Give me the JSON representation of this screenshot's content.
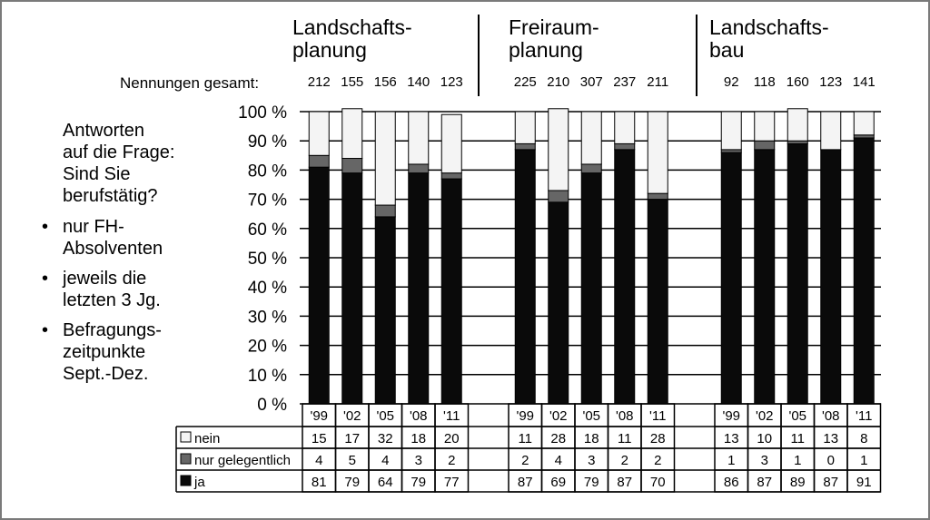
{
  "chart_data": {
    "type": "bar",
    "stacked": true,
    "groups": [
      {
        "title": "Landschafts-\nplanung",
        "years": [
          "'99",
          "'02",
          "'05",
          "'08",
          "'11"
        ],
        "nennungen": [
          212,
          155,
          156,
          140,
          123
        ],
        "nein": [
          15,
          17,
          32,
          18,
          20
        ],
        "nur_gelegentlich": [
          4,
          5,
          4,
          3,
          2
        ],
        "ja": [
          81,
          79,
          64,
          79,
          77
        ]
      },
      {
        "title": "Freiraum-\nplanung",
        "years": [
          "'99",
          "'02",
          "'05",
          "'08",
          "'11"
        ],
        "nennungen": [
          225,
          210,
          307,
          237,
          211
        ],
        "nein": [
          11,
          28,
          18,
          11,
          28
        ],
        "nur_gelegentlich": [
          2,
          4,
          3,
          2,
          2
        ],
        "ja": [
          87,
          69,
          79,
          87,
          70
        ]
      },
      {
        "title": "Landschafts-\nbau",
        "years": [
          "'99",
          "'02",
          "'05",
          "'08",
          "'11"
        ],
        "nennungen": [
          92,
          118,
          160,
          123,
          141
        ],
        "nein": [
          13,
          10,
          11,
          13,
          8
        ],
        "nur_gelegentlich": [
          1,
          3,
          1,
          0,
          1
        ],
        "ja": [
          86,
          87,
          89,
          87,
          91
        ]
      }
    ],
    "series": [
      {
        "name": "nein",
        "color": "#f4f4f4"
      },
      {
        "name": "nur gelegentlich",
        "color": "#666666"
      },
      {
        "name": "ja",
        "color": "#0a0a0a"
      }
    ],
    "yticks": [
      "0 %",
      "10 %",
      "20 %",
      "30 %",
      "40 %",
      "50 %",
      "60 %",
      "70 %",
      "80 %",
      "90 %",
      "100 %"
    ],
    "ylim": [
      0,
      100
    ],
    "nennungen_label": "Nennungen gesamt:",
    "grid": true,
    "legend": "table-below"
  },
  "left_panel": {
    "question": "Antworten\nauf die Frage:\nSind Sie\nberufstätig?",
    "bullets": [
      "nur FH-\nAbsolventen",
      "jeweils die\nletzten 3 Jg.",
      "Befragungs-\nzeitpunkte\nSept.-Dez."
    ]
  }
}
